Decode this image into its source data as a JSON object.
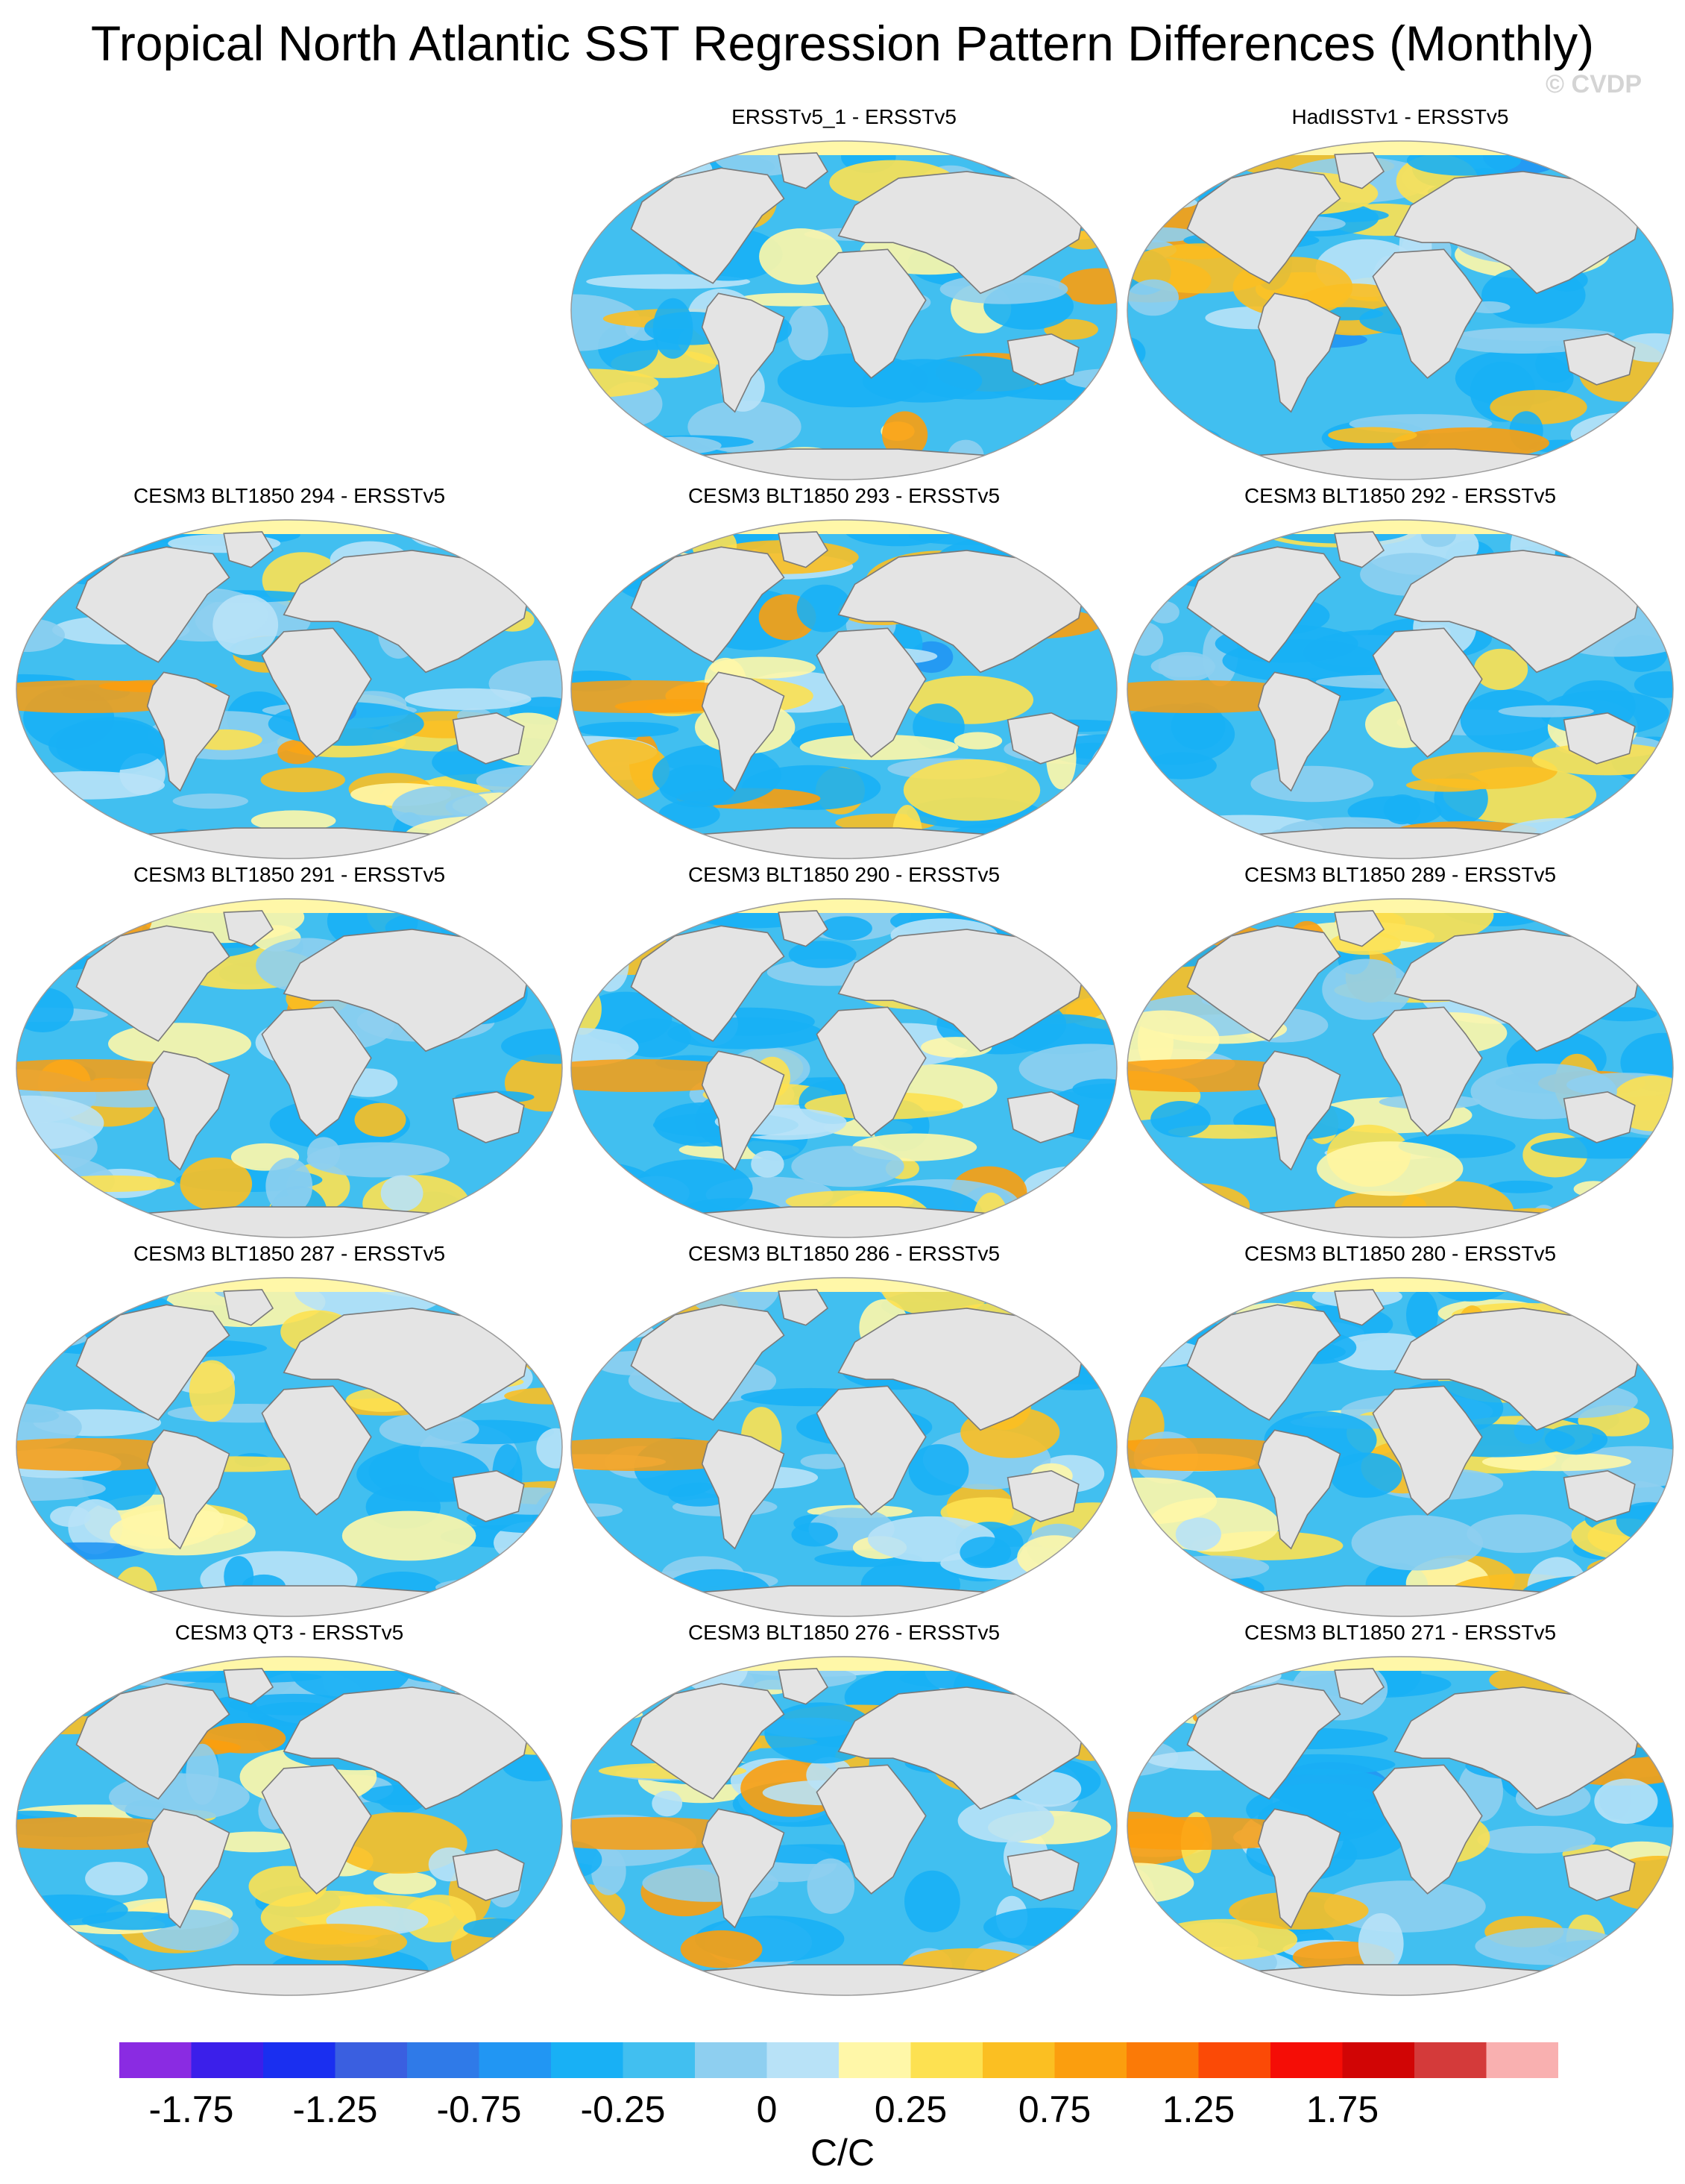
{
  "title": "Tropical North Atlantic SST Regression Pattern Differences (Monthly)",
  "copyright": "© CVDP",
  "panels": [
    {
      "title": "ERSSTv5_1 - ERSSTv5",
      "row": 0,
      "col": 1,
      "seed": 3
    },
    {
      "title": "HadISSTv1 - ERSSTv5",
      "row": 0,
      "col": 2,
      "seed": 7
    },
    {
      "title": "CESM3 BLT1850 294 - ERSSTv5",
      "row": 1,
      "col": 0,
      "seed": 11
    },
    {
      "title": "CESM3 BLT1850 293 - ERSSTv5",
      "row": 1,
      "col": 1,
      "seed": 13
    },
    {
      "title": "CESM3 BLT1850 292 - ERSSTv5",
      "row": 1,
      "col": 2,
      "seed": 17
    },
    {
      "title": "CESM3 BLT1850 291 - ERSSTv5",
      "row": 2,
      "col": 0,
      "seed": 19
    },
    {
      "title": "CESM3 BLT1850 290 - ERSSTv5",
      "row": 2,
      "col": 1,
      "seed": 23
    },
    {
      "title": "CESM3 BLT1850 289 - ERSSTv5",
      "row": 2,
      "col": 2,
      "seed": 29
    },
    {
      "title": "CESM3 BLT1850 287 - ERSSTv5",
      "row": 3,
      "col": 0,
      "seed": 31
    },
    {
      "title": "CESM3 BLT1850 286 - ERSSTv5",
      "row": 3,
      "col": 1,
      "seed": 37
    },
    {
      "title": "CESM3 BLT1850 280 - ERSSTv5",
      "row": 3,
      "col": 2,
      "seed": 41
    },
    {
      "title": "CESM3 QT3 - ERSSTv5",
      "row": 4,
      "col": 0,
      "seed": 43
    },
    {
      "title": "CESM3 BLT1850 276 - ERSSTv5",
      "row": 4,
      "col": 1,
      "seed": 47
    },
    {
      "title": "CESM3 BLT1850 271 - ERSSTv5",
      "row": 4,
      "col": 2,
      "seed": 53
    }
  ],
  "colorbar": {
    "colors": [
      "#8a2be2",
      "#3b1fea",
      "#1a2ff0",
      "#3a5fe0",
      "#2f7ae8",
      "#2196f3",
      "#18b0f5",
      "#41bff0",
      "#8ecff0",
      "#b8e2f7",
      "#fff7a8",
      "#fde151",
      "#fbbf22",
      "#fb9e0e",
      "#fb7a07",
      "#fb4a06",
      "#f50d06",
      "#d10505",
      "#d43a3a",
      "#f9b0b0"
    ],
    "tick_labels": [
      "-1.75",
      "-1.25",
      "-0.75",
      "-0.25",
      "0",
      "0.25",
      "0.75",
      "1.25",
      "1.75"
    ],
    "units": "C/C"
  },
  "map_colors": {
    "land": "#e4e4e4",
    "coast": "#7a7a7a",
    "globe_outline": "#9a9a9a"
  }
}
